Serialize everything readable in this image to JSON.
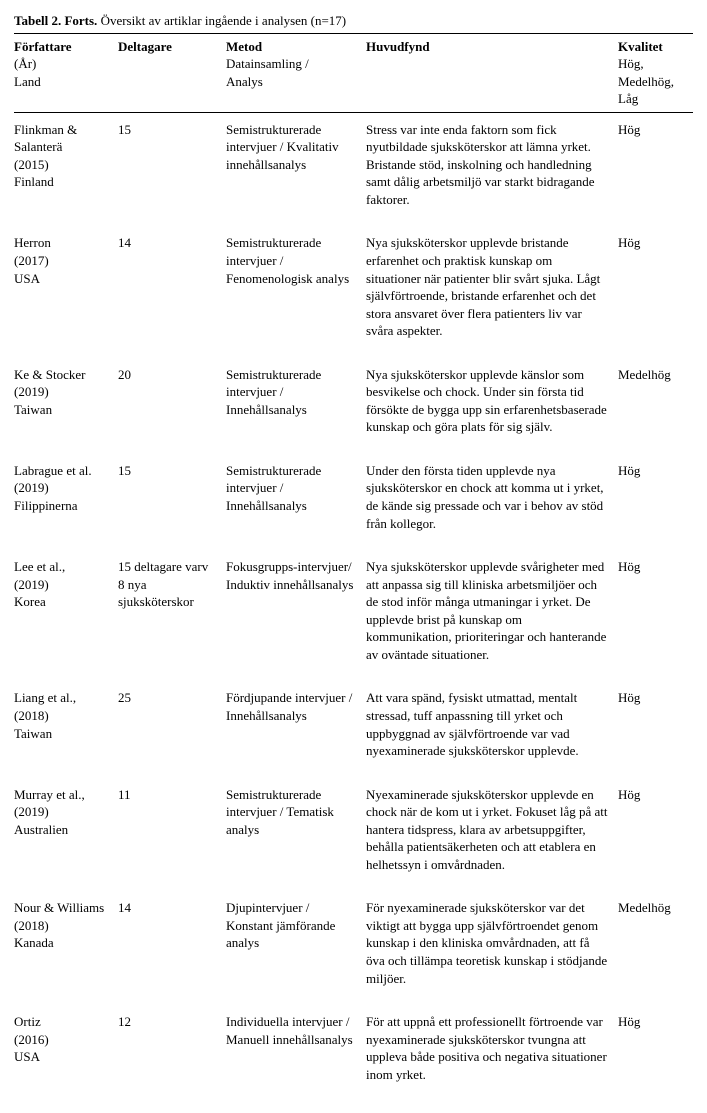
{
  "title_bold": "Tabell 2. Forts.",
  "title_rest": " Översikt av artiklar ingående i analysen (n=17)",
  "headers": {
    "author_bold": "Författare",
    "author_sub1": "(År)",
    "author_sub2": "Land",
    "participants_bold": "Deltagare",
    "method_bold": "Metod",
    "method_sub1": "Datainsamling /",
    "method_sub2": "Analys",
    "findings_bold": "Huvudfynd",
    "quality_bold": "Kvalitet",
    "quality_sub1": "Hög,",
    "quality_sub2": "Medelhög,",
    "quality_sub3": "Låg"
  },
  "rows": [
    {
      "author": "Flinkman & Salanterä\n(2015)\nFinland",
      "participants": "15",
      "method": "Semistrukturerade intervjuer / Kvalitativ innehållsanalys",
      "findings": "Stress var inte enda faktorn som fick nyutbildade sjuksköterskor att lämna yrket. Bristande stöd, inskolning och handledning samt dålig arbetsmiljö var starkt bidragande faktorer.",
      "quality": "Hög"
    },
    {
      "author": "Herron\n(2017)\nUSA",
      "participants": "14",
      "method": "Semistrukturerade intervjuer / Fenomenologisk analys",
      "findings": "Nya sjuksköterskor upplevde bristande erfarenhet och praktisk kunskap om situationer när patienter blir svårt sjuka. Lågt självförtroende, bristande erfarenhet och det stora ansvaret över flera patienters liv var svåra aspekter.",
      "quality": "Hög"
    },
    {
      "author": "Ke & Stocker\n(2019)\nTaiwan",
      "participants": "20",
      "method": "Semistrukturerade intervjuer / Innehållsanalys",
      "findings": "Nya sjuksköterskor upplevde känslor som besvikelse och chock. Under sin första tid försökte de bygga upp sin erfarenhetsbaserade kunskap och göra plats för sig själv.",
      "quality": "Medelhög"
    },
    {
      "author": "Labrague et al.\n(2019)\nFilippinerna",
      "participants": "15",
      "method": "Semistrukturerade intervjuer / Innehållsanalys",
      "findings": "Under den första tiden upplevde nya sjuksköterskor en chock att komma ut i yrket, de kände sig pressade och var i behov av stöd från kollegor.",
      "quality": "Hög"
    },
    {
      "author": "Lee et al.,\n(2019)\nKorea",
      "participants": "15 deltagare varv\n8 nya sjuksköterskor",
      "method": "Fokusgrupps-intervjuer/ Induktiv innehållsanalys",
      "findings": "Nya sjuksköterskor upplevde svårigheter med att anpassa sig till kliniska arbetsmiljöer och de stod inför många utmaningar i yrket. De upplevde brist på kunskap om kommunikation, prioriteringar och hanterande av oväntade situationer.",
      "quality": "Hög"
    },
    {
      "author": "Liang et al.,\n(2018)\nTaiwan",
      "participants": "25",
      "method": "Fördjupande intervjuer / Innehållsanalys",
      "findings": "Att vara spänd, fysiskt utmattad, mentalt stressad, tuff anpassning till yrket och uppbyggnad av självförtroende var vad nyexaminerade sjuksköterskor upplevde.",
      "quality": "Hög"
    },
    {
      "author": "Murray et al.,\n(2019)\nAustralien",
      "participants": "11",
      "method": "Semistrukturerade intervjuer / Tematisk analys",
      "findings": "Nyexaminerade sjuksköterskor upplevde en chock när de kom ut i yrket. Fokuset låg på att hantera tidspress, klara av arbetsuppgifter, behålla patientsäkerheten och att etablera en helhetssyn i omvårdnaden.",
      "quality": "Hög"
    },
    {
      "author": "Nour & Williams\n(2018)\nKanada",
      "participants": "14",
      "method": "Djupintervjuer / Konstant jämförande analys",
      "findings": "För nyexaminerade sjuksköterskor var det viktigt att bygga upp självförtroendet genom kunskap i den kliniska omvårdnaden, att få öva och tillämpa teoretisk kunskap i stödjande miljöer.",
      "quality": "Medelhög"
    },
    {
      "author": "Ortiz\n(2016)\nUSA",
      "participants": "12",
      "method": "Individuella intervjuer / Manuell innehållsanalys",
      "findings": "För att uppnå ett professionellt förtroende var nyexaminerade sjuksköterskor tvungna att uppleva både positiva och negativa situationer inom yrket.",
      "quality": "Hög"
    }
  ]
}
